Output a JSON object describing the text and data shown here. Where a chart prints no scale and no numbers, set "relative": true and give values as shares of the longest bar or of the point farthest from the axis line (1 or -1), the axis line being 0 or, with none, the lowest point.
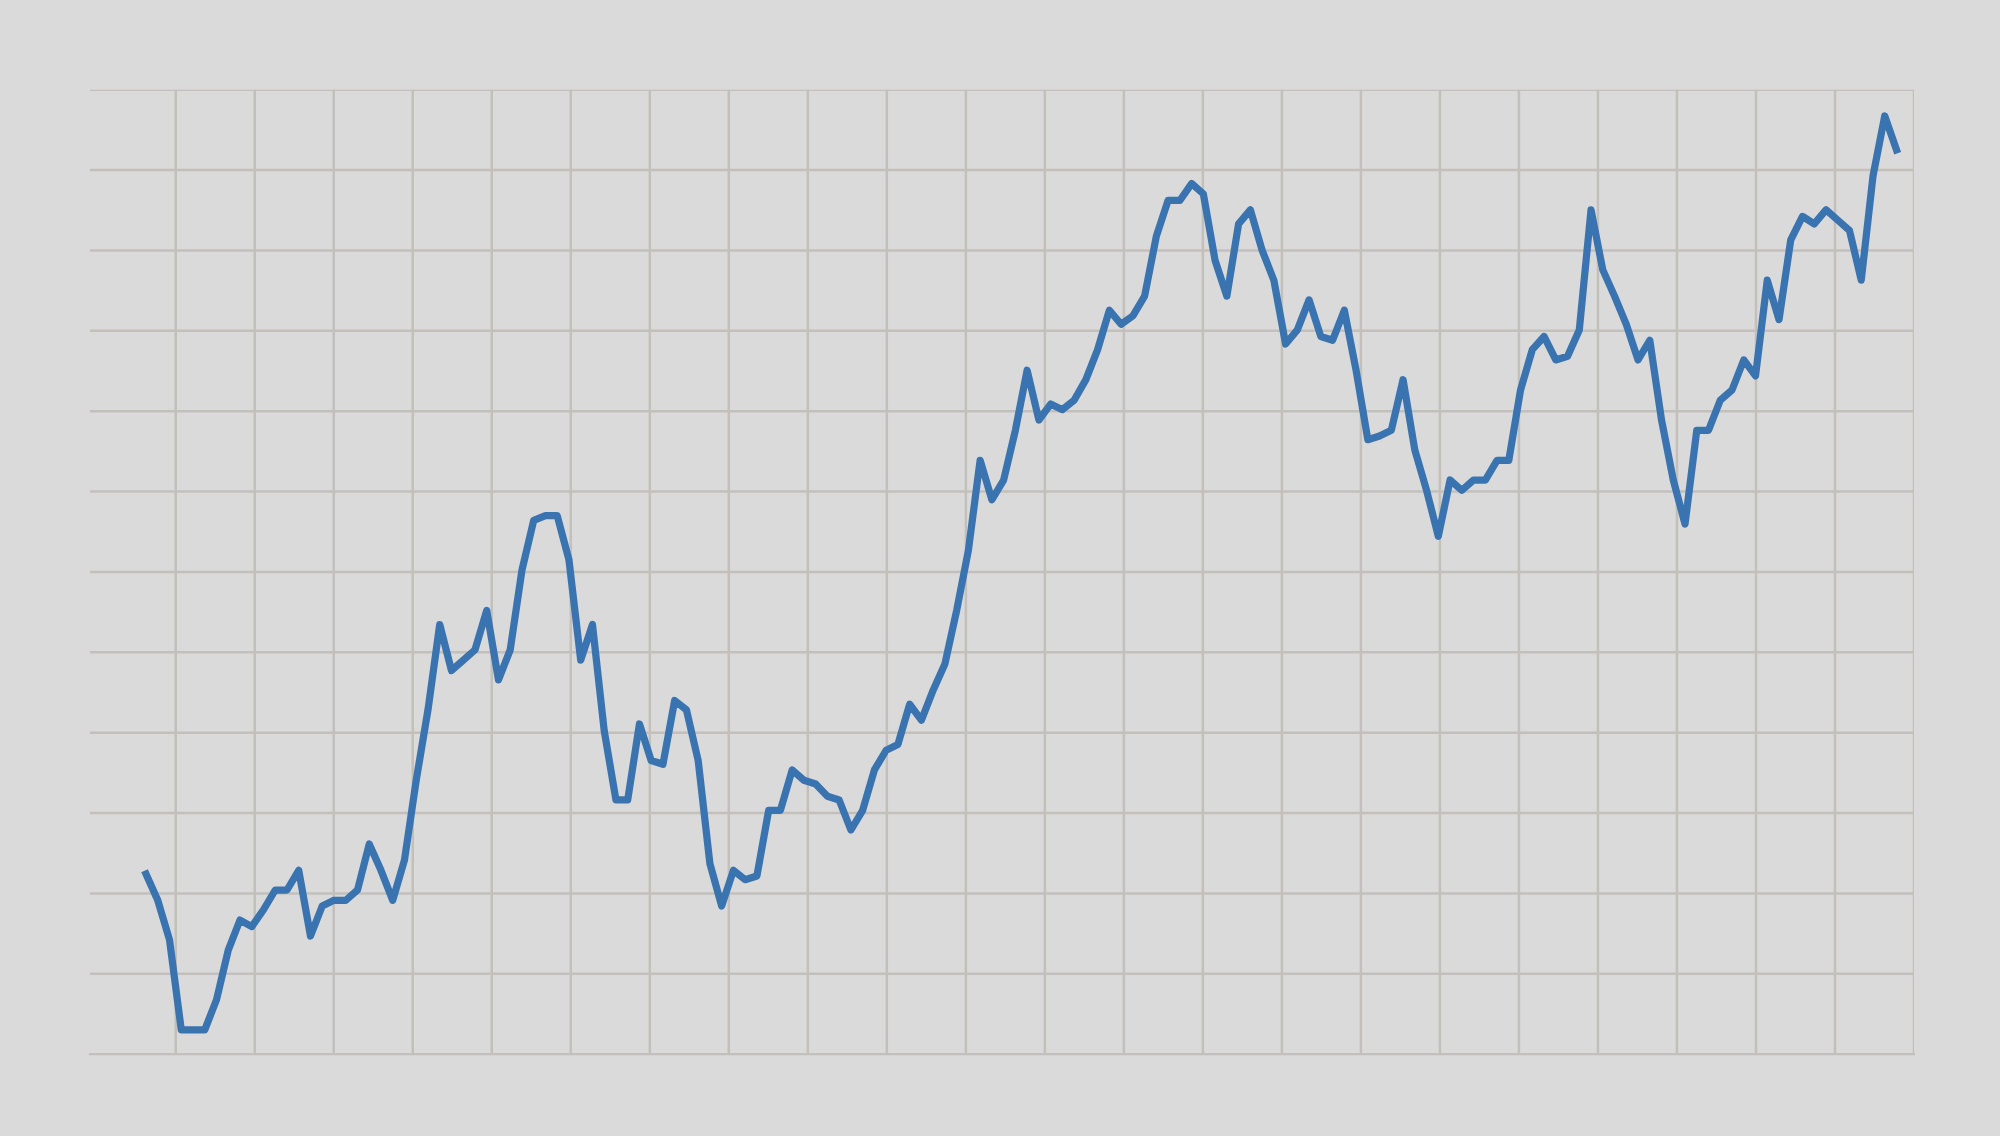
{
  "chart_data": {
    "type": "line",
    "relative": true,
    "grid": true,
    "tick_labels": false,
    "marker": "none",
    "line_style": "solid",
    "categories": [
      null,
      null,
      null,
      null,
      null,
      null,
      null,
      null,
      null,
      null,
      null,
      null,
      null,
      null,
      null,
      null,
      null,
      null,
      null,
      null,
      null,
      null,
      null,
      null,
      null,
      null,
      null,
      null,
      null,
      null,
      null,
      null,
      null,
      null,
      null,
      null,
      null,
      null,
      null,
      null,
      null,
      null,
      null,
      null,
      null,
      null,
      null,
      null,
      null,
      null,
      null,
      null,
      null,
      null,
      null,
      null,
      null,
      null,
      null,
      null,
      null,
      null,
      null,
      null,
      null,
      null,
      null,
      null,
      null,
      null,
      null,
      null,
      null,
      null,
      null,
      null,
      null,
      null,
      null,
      null,
      null,
      null,
      null,
      null,
      null,
      null,
      null,
      null,
      null,
      null,
      null,
      null,
      null,
      null,
      null,
      null,
      null,
      null,
      null,
      null,
      null,
      null,
      null,
      null,
      null,
      null,
      null,
      null,
      null,
      null,
      null,
      null,
      null,
      null,
      null,
      null,
      null,
      null,
      null,
      null,
      null,
      null,
      null,
      null,
      null,
      null,
      null,
      null,
      null,
      null,
      null,
      null,
      null,
      null,
      null,
      null,
      null,
      null,
      null,
      null,
      null,
      null,
      null,
      null,
      null,
      null,
      null,
      null,
      null,
      null
    ],
    "series": [
      {
        "color": "#3a74b0",
        "values": [
          0.192,
          0.164,
          0.122,
          0.026,
          0.026,
          0.026,
          0.058,
          0.111,
          0.143,
          0.136,
          0.154,
          0.175,
          0.175,
          0.196,
          0.126,
          0.158,
          0.164,
          0.164,
          0.175,
          0.224,
          0.196,
          0.164,
          0.207,
          0.292,
          0.367,
          0.458,
          0.409,
          0.42,
          0.431,
          0.473,
          0.399,
          0.431,
          0.516,
          0.569,
          0.574,
          0.574,
          0.527,
          0.42,
          0.458,
          0.345,
          0.271,
          0.271,
          0.352,
          0.313,
          0.309,
          0.377,
          0.367,
          0.313,
          0.203,
          0.158,
          0.196,
          0.186,
          0.19,
          0.26,
          0.26,
          0.303,
          0.292,
          0.288,
          0.275,
          0.271,
          0.239,
          0.26,
          0.303,
          0.324,
          0.33,
          0.373,
          0.356,
          0.388,
          0.416,
          0.473,
          0.537,
          0.633,
          0.591,
          0.612,
          0.665,
          0.729,
          0.676,
          0.693,
          0.687,
          0.697,
          0.719,
          0.751,
          0.793,
          0.778,
          0.787,
          0.808,
          0.872,
          0.91,
          0.91,
          0.928,
          0.917,
          0.846,
          0.808,
          0.885,
          0.9,
          0.857,
          0.825,
          0.757,
          0.772,
          0.804,
          0.765,
          0.761,
          0.793,
          0.729,
          0.655,
          0.659,
          0.665,
          0.719,
          0.644,
          0.601,
          0.552,
          0.612,
          0.601,
          0.612,
          0.612,
          0.633,
          0.633,
          0.708,
          0.751,
          0.765,
          0.74,
          0.744,
          0.772,
          0.9,
          0.836,
          0.808,
          0.778,
          0.74,
          0.761,
          0.676,
          0.612,
          0.565,
          0.665,
          0.665,
          0.697,
          0.708,
          0.74,
          0.723,
          0.825,
          0.783,
          0.868,
          0.893,
          0.885,
          0.9,
          0.889,
          0.878,
          0.825,
          0.936,
          1,
          0.964
        ]
      }
    ]
  }
}
